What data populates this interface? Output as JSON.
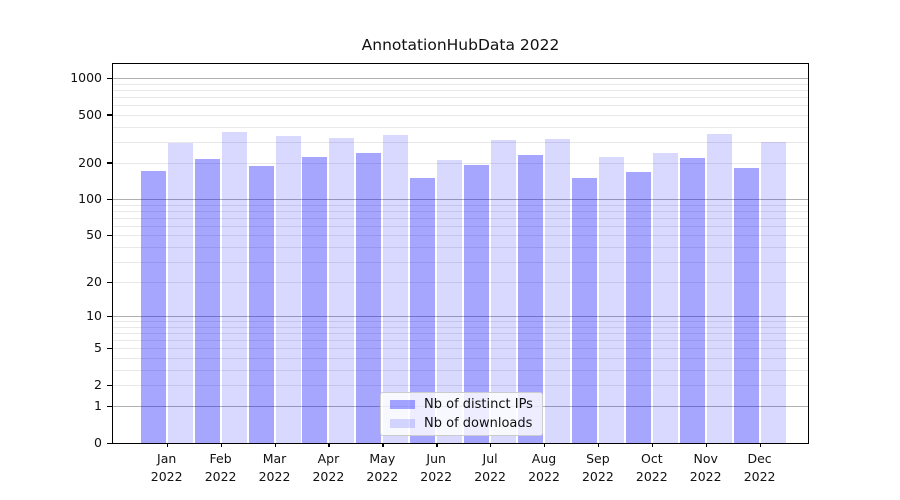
{
  "figure": {
    "background": "#ffffff"
  },
  "chart_data": {
    "type": "bar",
    "title": "AnnotationHubData 2022",
    "categories": [
      "Jan",
      "Feb",
      "Mar",
      "Apr",
      "May",
      "Jun",
      "Jul",
      "Aug",
      "Sep",
      "Oct",
      "Nov",
      "Dec"
    ],
    "category_year": "2022",
    "series": [
      {
        "name": "Nb of distinct IPs",
        "color": "#0000ff",
        "alpha": 0.35,
        "values": [
          172,
          217,
          189,
          225,
          240,
          150,
          194,
          234,
          150,
          170,
          221,
          181
        ]
      },
      {
        "name": "Nb of downloads",
        "color": "#0000ff",
        "alpha": 0.15,
        "values": [
          290,
          360,
          335,
          320,
          340,
          213,
          310,
          315,
          222,
          240,
          348,
          300
        ]
      }
    ],
    "yscale": "log1p",
    "ylim": [
      0,
      1300
    ],
    "y_ticks": [
      0,
      1,
      2,
      5,
      10,
      20,
      50,
      100,
      200,
      500,
      1000
    ],
    "y_major_gridlines": [
      1,
      10,
      100,
      1000
    ],
    "y_minor_gridlines": [
      2,
      3,
      4,
      5,
      6,
      7,
      8,
      9,
      20,
      30,
      40,
      50,
      60,
      70,
      80,
      90,
      200,
      300,
      400,
      500,
      600,
      700,
      800,
      900
    ],
    "grid": true,
    "legend_position": "lower center",
    "axis_color": "#000000",
    "major_grid_color": "#b0b0b0",
    "minor_grid_color": "#e8e8e8"
  }
}
